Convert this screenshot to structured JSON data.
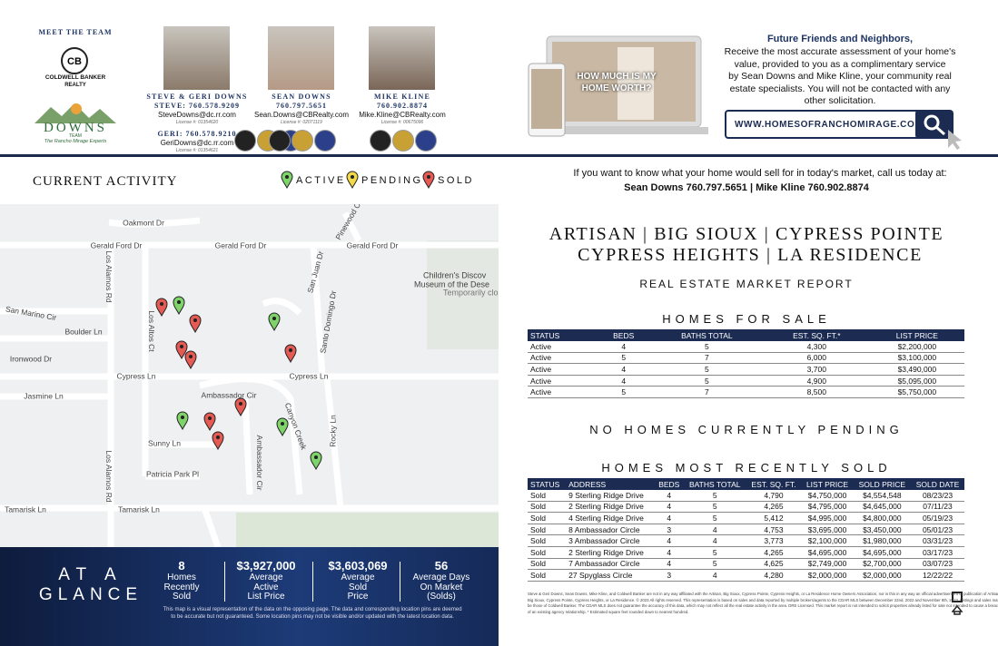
{
  "header": {
    "meet_the_team": "MEET THE TEAM",
    "brokerage": [
      "COLDWELL BANKER",
      "REALTY"
    ],
    "team_logo": {
      "name": "DOWNS",
      "team": "TEAM",
      "tagline": "The Rancho Mirage Experts"
    },
    "agents": [
      {
        "name": "STEVE & GERI DOWNS",
        "lines": [
          "STEVE: 760.578.9209",
          "SteveDowns@dc.rr.com",
          "License #: 01354620",
          "GERI: 760.578.9210",
          "GeriDowns@dc.rr.com",
          "License #: 01354621"
        ]
      },
      {
        "name": "SEAN DOWNS",
        "lines": [
          "760.797.5651",
          "Sean.Downs@CBRealty.com",
          "License #: 02071119"
        ]
      },
      {
        "name": "MIKE KLINE",
        "lines": [
          "760.902.8874",
          "Mike.Kline@CBRealty.com",
          "License #: 00675096"
        ]
      }
    ],
    "promo": {
      "image_text": "HOW MUCH IS MY HOME WORTH?",
      "heading": "Future Friends and Neighbors,",
      "body": [
        "Receive the most accurate assessment of your home's",
        "value, provided to you as a complimentary service",
        "by Sean Downs and Mike Kline, your community real",
        "estate specialists. You will not be contacted with any",
        "other solicitation."
      ],
      "url": "WWW.HOMESOFRANCHOMIRAGE.COM"
    }
  },
  "activity": {
    "title": "CURRENT ACTIVITY",
    "legend": [
      "ACTIVE",
      "PENDING",
      "SOLD"
    ],
    "call_text": "If you want to know what your home would sell for in today's market, call us today at:",
    "call_agents": "Sean Downs 760.797.5651 | Mike Kline 760.902.8874"
  },
  "map": {
    "labels": [
      "Oakmont Dr",
      "Gerald Ford Dr",
      "Gerald Ford Dr",
      "Gerald Ford Dr",
      "Pinewood Cir",
      "Children's Discov",
      "Museum of the Dese",
      "Temporarily close",
      "San Marino Cir",
      "Boulder Ln",
      "Ironwood Dr",
      "Cypress Ln",
      "Cypress Ln",
      "Jasmine Ln",
      "Ambassador Cir",
      "Sunny Ln",
      "Patricia Park Pl",
      "Tamarisk Ln",
      "Tamarisk Ln",
      "Los Alamos Rd",
      "Los Alamos Rd",
      "Los Altos Ct",
      "San Juan Dr",
      "Santo Domingo Dr",
      "Canyon Creek",
      "Rocky Ln",
      "Ambassador Cir"
    ]
  },
  "glance": {
    "title": [
      "AT A",
      "GLANCE"
    ],
    "stats": [
      {
        "value": "8",
        "label": [
          "Homes",
          "Recently",
          "Sold"
        ]
      },
      {
        "value": "$3,927,000",
        "label": [
          "Average",
          "Active",
          "List Price"
        ]
      },
      {
        "value": "$3,603,069",
        "label": [
          "Average",
          "Sold",
          "Price"
        ]
      },
      {
        "value": "56",
        "label": [
          "Average Days",
          "On Market",
          "(Solds)"
        ]
      }
    ],
    "disclaimer": [
      "This map is a visual representation of the data on the opposing page. The data and corresponding location pins are deemed",
      "to be accurate but not guaranteed. Some location pins may not be visible and/or updated with the latest location data."
    ]
  },
  "report": {
    "title": [
      "ARTISAN | BIG SIOUX | CYPRESS POINTE",
      "CYPRESS HEIGHTS | LA RESIDENCE"
    ],
    "subtitle": "REAL ESTATE MARKET REPORT",
    "for_sale": {
      "heading": "HOMES FOR SALE",
      "columns": [
        "STATUS",
        "BEDS",
        "BATHS TOTAL",
        "EST. SQ. FT.*",
        "LIST PRICE"
      ],
      "rows": [
        [
          "Active",
          "4",
          "5",
          "4,300",
          "$2,200,000"
        ],
        [
          "Active",
          "5",
          "7",
          "6,000",
          "$3,100,000"
        ],
        [
          "Active",
          "4",
          "5",
          "3,700",
          "$3,490,000"
        ],
        [
          "Active",
          "4",
          "5",
          "4,900",
          "$5,095,000"
        ],
        [
          "Active",
          "5",
          "7",
          "8,500",
          "$5,750,000"
        ]
      ]
    },
    "pending": "NO HOMES CURRENTLY PENDING",
    "sold": {
      "heading": "HOMES MOST RECENTLY SOLD",
      "columns": [
        "STATUS",
        "ADDRESS",
        "BEDS",
        "BATHS TOTAL",
        "EST. SQ. FT.",
        "LIST PRICE",
        "SOLD PRICE",
        "SOLD DATE"
      ],
      "rows": [
        [
          "Sold",
          "9 Sterling Ridge Drive",
          "4",
          "5",
          "4,790",
          "$4,750,000",
          "$4,554,548",
          "08/23/23"
        ],
        [
          "Sold",
          "2 Sterling Ridge Drive",
          "4",
          "5",
          "4,265",
          "$4,795,000",
          "$4,645,000",
          "07/11/23"
        ],
        [
          "Sold",
          "4 Sterling Ridge Drive",
          "4",
          "5",
          "5,412",
          "$4,995,000",
          "$4,800,000",
          "05/19/23"
        ],
        [
          "Sold",
          "8 Ambassador Circle",
          "3",
          "4",
          "4,753",
          "$3,695,000",
          "$3,450,000",
          "05/01/23"
        ],
        [
          "Sold",
          "3 Ambassador Circle",
          "4",
          "4",
          "3,773",
          "$2,100,000",
          "$1,980,000",
          "03/31/23"
        ],
        [
          "Sold",
          "2 Sterling Ridge Drive",
          "4",
          "5",
          "4,265",
          "$4,695,000",
          "$4,695,000",
          "03/17/23"
        ],
        [
          "Sold",
          "7 Ambassador Circle",
          "4",
          "5",
          "4,625",
          "$2,749,000",
          "$2,700,000",
          "03/07/23"
        ],
        [
          "Sold",
          "27 Spyglass Circle",
          "3",
          "4",
          "4,280",
          "$2,000,000",
          "$2,000,000",
          "12/22/22"
        ]
      ]
    },
    "fine_print": [
      "Steve & Geri Downs, Sean Downs, Mike Kline, and Coldwell Banker are not in any way affiliated with the Artisan, Big Sioux, Cypress Pointe, Cypress Heights, or La Residence Home Owners Association, nor is this in any way an official advertisement or publication of Artisan,",
      "Big Sioux, Cypress Pointe, Cypress Heights, or La Residence. © 2023 All rights reserved. This representation is based on sales and data reported by multiple brokers/agents to the CDAR MLS between December 22nd, 2022 and November 8th, 2023. Listings and sales may not",
      "be those of Coldwell Banker. The CDAR MLS does not guarantee the accuracy of this data, which may not reflect all the real estate activity in the area. DRE Licensed. This market report is not intended to solicit properties already listed for sale nor intended to cause a breach",
      "of an existing agency relationship. * Estimated square feet rounded down to nearest hundred."
    ]
  }
}
